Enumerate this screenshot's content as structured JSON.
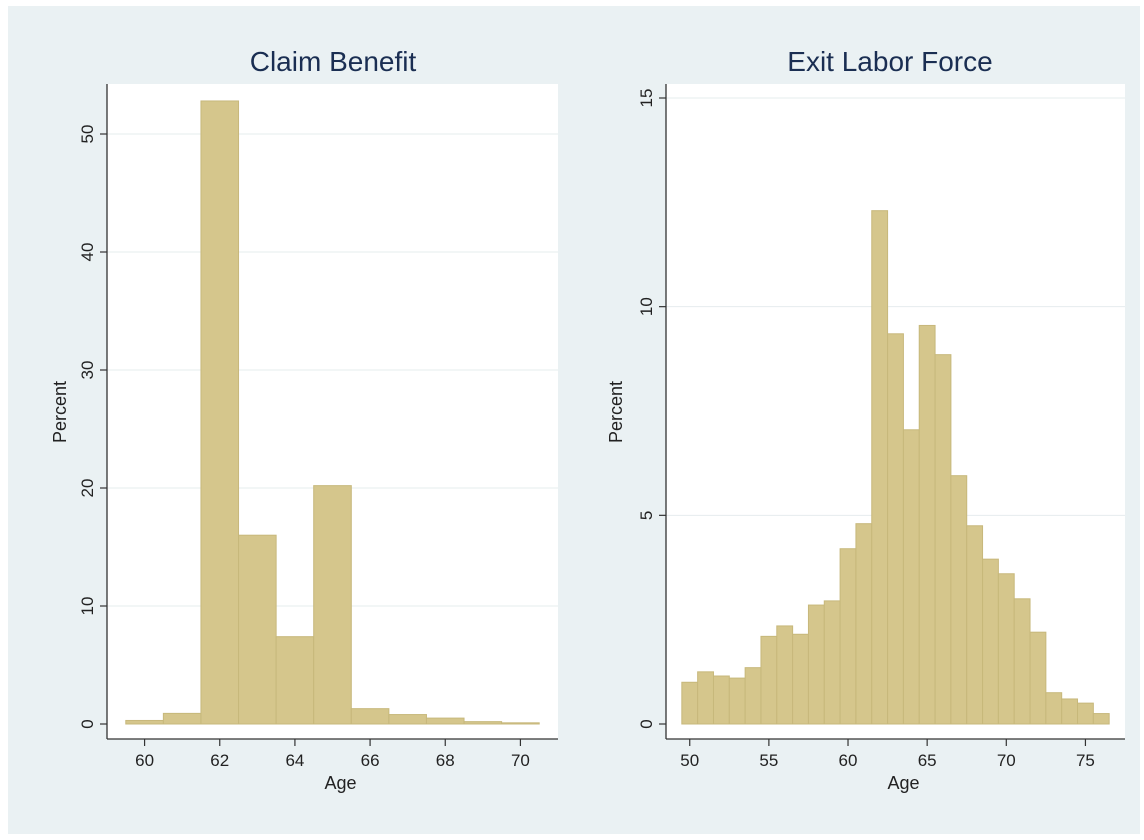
{
  "colors": {
    "figure_background": "#eaf1f3",
    "plot_background": "#ffffff",
    "bar_fill": "#d5c68c",
    "bar_stroke": "#c7b87b",
    "grid": "#e6ecee",
    "axis": "#333333",
    "title": "#1a2e52"
  },
  "chart_data": [
    {
      "type": "bar",
      "title": "Claim Benefit",
      "xlabel": "Age",
      "ylabel": "Percent",
      "xlim": [
        59,
        71
      ],
      "ylim": [
        0,
        54
      ],
      "grid": true,
      "xticks": [
        60,
        62,
        64,
        66,
        68,
        70
      ],
      "yticks": [
        0,
        10,
        20,
        30,
        40,
        50
      ],
      "bins": [
        {
          "x0": 59.5,
          "x1": 60.5,
          "value": 0.3
        },
        {
          "x0": 60.5,
          "x1": 61.5,
          "value": 0.9
        },
        {
          "x0": 61.5,
          "x1": 62.5,
          "value": 52.8
        },
        {
          "x0": 62.5,
          "x1": 63.5,
          "value": 16.0
        },
        {
          "x0": 63.5,
          "x1": 64.5,
          "value": 7.4
        },
        {
          "x0": 64.5,
          "x1": 65.5,
          "value": 20.2
        },
        {
          "x0": 65.5,
          "x1": 66.5,
          "value": 1.3
        },
        {
          "x0": 66.5,
          "x1": 67.5,
          "value": 0.8
        },
        {
          "x0": 67.5,
          "x1": 68.5,
          "value": 0.5
        },
        {
          "x0": 68.5,
          "x1": 69.5,
          "value": 0.2
        },
        {
          "x0": 69.5,
          "x1": 70.5,
          "value": 0.1
        }
      ]
    },
    {
      "type": "bar",
      "title": "Exit Labor Force",
      "xlabel": "Age",
      "ylabel": "Percent",
      "xlim": [
        48.5,
        77.5
      ],
      "ylim": [
        0,
        15
      ],
      "grid": true,
      "xticks": [
        50,
        55,
        60,
        65,
        70,
        75
      ],
      "yticks": [
        0,
        5,
        10,
        15
      ],
      "bins": [
        {
          "x0": 49.5,
          "x1": 50.5,
          "value": 1.0
        },
        {
          "x0": 50.5,
          "x1": 51.5,
          "value": 1.25
        },
        {
          "x0": 51.5,
          "x1": 52.5,
          "value": 1.15
        },
        {
          "x0": 52.5,
          "x1": 53.5,
          "value": 1.1
        },
        {
          "x0": 53.5,
          "x1": 54.5,
          "value": 1.35
        },
        {
          "x0": 54.5,
          "x1": 55.5,
          "value": 2.1
        },
        {
          "x0": 55.5,
          "x1": 56.5,
          "value": 2.35
        },
        {
          "x0": 56.5,
          "x1": 57.5,
          "value": 2.15
        },
        {
          "x0": 57.5,
          "x1": 58.5,
          "value": 2.85
        },
        {
          "x0": 58.5,
          "x1": 59.5,
          "value": 2.95
        },
        {
          "x0": 59.5,
          "x1": 60.5,
          "value": 4.2
        },
        {
          "x0": 60.5,
          "x1": 61.5,
          "value": 4.8
        },
        {
          "x0": 61.5,
          "x1": 62.5,
          "value": 12.3
        },
        {
          "x0": 62.5,
          "x1": 63.5,
          "value": 9.35
        },
        {
          "x0": 63.5,
          "x1": 64.5,
          "value": 7.05
        },
        {
          "x0": 64.5,
          "x1": 65.5,
          "value": 9.55
        },
        {
          "x0": 65.5,
          "x1": 66.5,
          "value": 8.85
        },
        {
          "x0": 66.5,
          "x1": 67.5,
          "value": 5.95
        },
        {
          "x0": 67.5,
          "x1": 68.5,
          "value": 4.75
        },
        {
          "x0": 68.5,
          "x1": 69.5,
          "value": 3.95
        },
        {
          "x0": 69.5,
          "x1": 70.5,
          "value": 3.6
        },
        {
          "x0": 70.5,
          "x1": 71.5,
          "value": 3.0
        },
        {
          "x0": 71.5,
          "x1": 72.5,
          "value": 2.2
        },
        {
          "x0": 72.5,
          "x1": 73.5,
          "value": 0.75
        },
        {
          "x0": 73.5,
          "x1": 74.5,
          "value": 0.6
        },
        {
          "x0": 74.5,
          "x1": 75.5,
          "value": 0.5
        },
        {
          "x0": 75.5,
          "x1": 76.5,
          "value": 0.25
        }
      ]
    }
  ]
}
